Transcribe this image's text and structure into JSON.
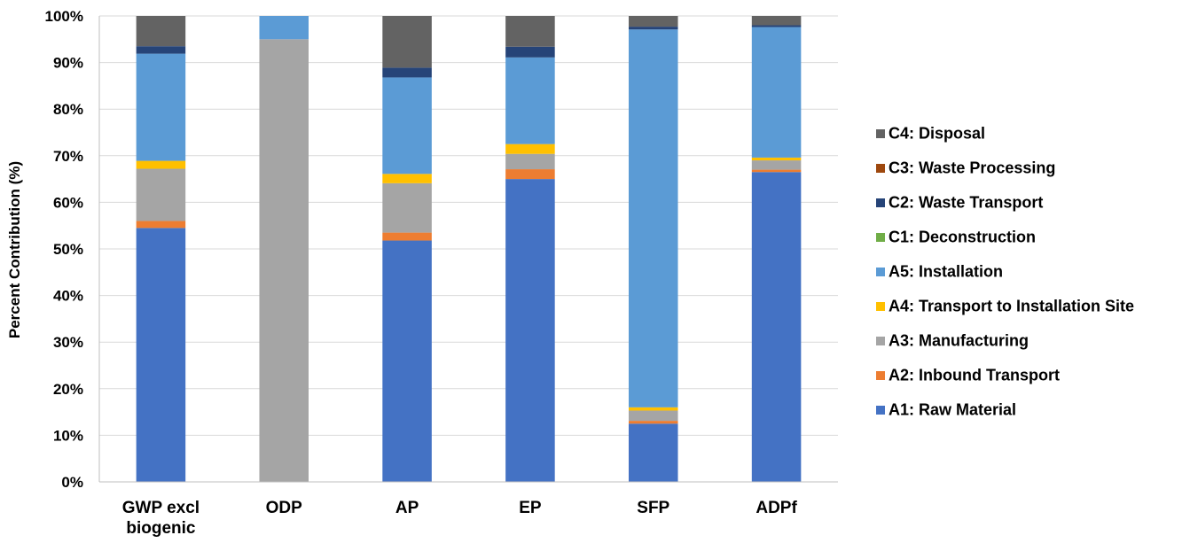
{
  "chart_data": {
    "type": "bar",
    "stacked": true,
    "normalized": true,
    "title": "",
    "xlabel": "",
    "ylabel": "Percent Contribution (%)",
    "ylim": [
      0,
      100
    ],
    "yticks": [
      "0%",
      "10%",
      "20%",
      "30%",
      "40%",
      "50%",
      "60%",
      "70%",
      "80%",
      "90%",
      "100%"
    ],
    "grid": true,
    "legend_position": "right",
    "categories": [
      [
        "GWP excl",
        "biogenic"
      ],
      [
        "ODP"
      ],
      [
        "AP"
      ],
      [
        "EP"
      ],
      [
        "SFP"
      ],
      [
        "ADPf"
      ]
    ],
    "series": [
      {
        "name": "A1: Raw Material",
        "color": "#4472C4",
        "values": [
          54.5,
          0,
          51.8,
          65.0,
          12.5,
          66.5
        ]
      },
      {
        "name": "A2: Inbound Transport",
        "color": "#ED7D31",
        "values": [
          1.5,
          0,
          1.7,
          2.1,
          0.6,
          0.5
        ]
      },
      {
        "name": "A3: Manufacturing",
        "color": "#A5A5A5",
        "values": [
          11.2,
          95.0,
          10.6,
          3.3,
          2.2,
          2.0
        ]
      },
      {
        "name": "A4: Transport to Installation Site",
        "color": "#FFC000",
        "values": [
          1.7,
          0,
          2.0,
          2.1,
          0.7,
          0.6
        ]
      },
      {
        "name": "A5: Installation",
        "color": "#5B9BD5",
        "values": [
          23.0,
          5.0,
          20.7,
          18.6,
          81.1,
          28.0
        ]
      },
      {
        "name": "C1: Deconstruction",
        "color": "#70AD47",
        "values": [
          0,
          0,
          0,
          0,
          0,
          0
        ]
      },
      {
        "name": "C2: Waste Transport",
        "color": "#264478",
        "values": [
          1.6,
          0,
          2.1,
          2.3,
          0.6,
          0.4
        ]
      },
      {
        "name": "C3: Waste Processing",
        "color": "#9E480E",
        "values": [
          0,
          0,
          0,
          0,
          0,
          0
        ]
      },
      {
        "name": "C4: Disposal",
        "color": "#636363",
        "values": [
          6.5,
          0,
          11.1,
          6.6,
          2.3,
          2.0
        ]
      }
    ]
  }
}
